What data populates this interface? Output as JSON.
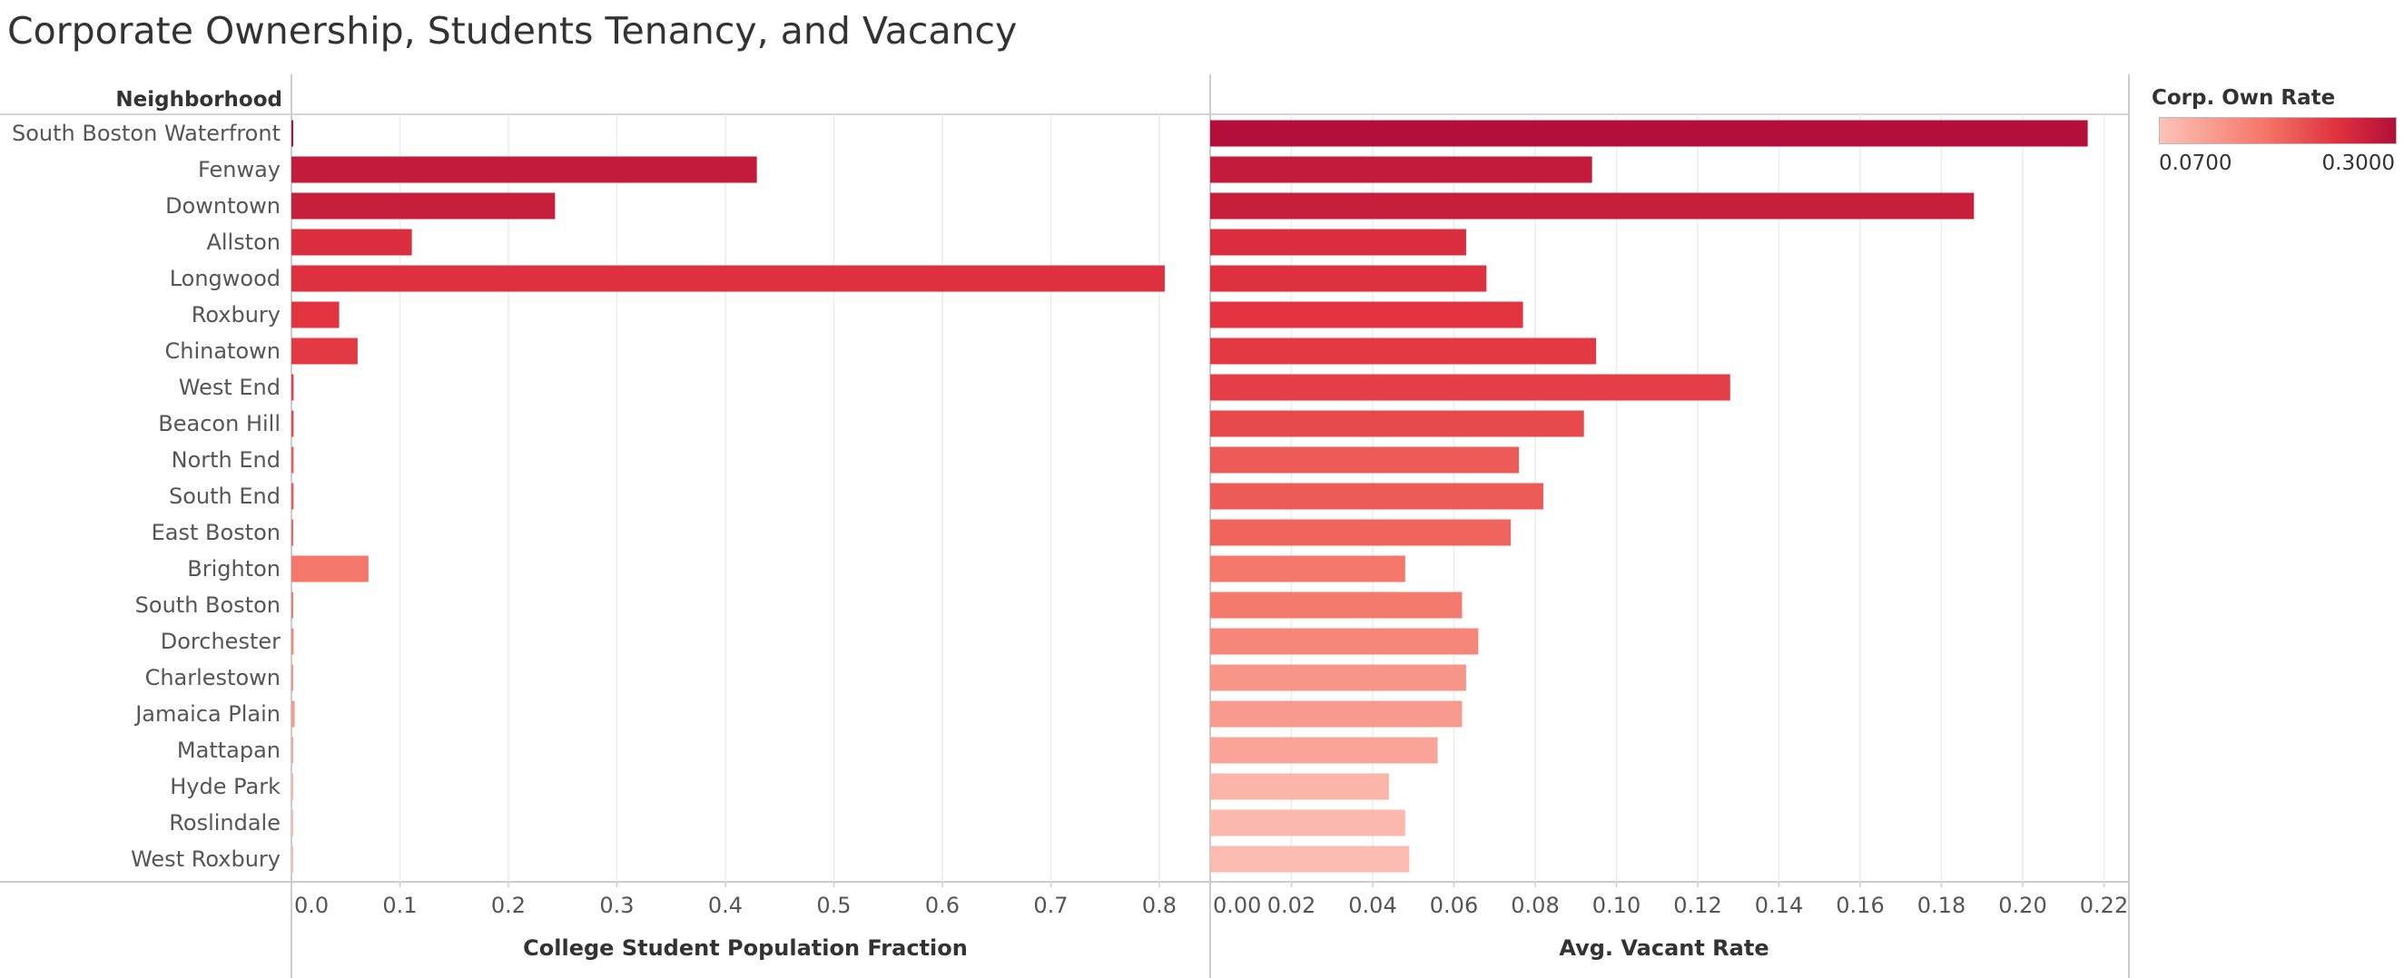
{
  "title": "Corporate Ownership, Students Tenancy, and Vacancy",
  "legend": {
    "title": "Corp. Own Rate",
    "min_label": "0.0700",
    "max_label": "0.3000",
    "min_color": "#fdc3b8",
    "max_color": "#b30f3a"
  },
  "chart_data": {
    "type": "bar",
    "orientation": "horizontal",
    "row_header": "Neighborhood",
    "categories": [
      "South Boston Waterfront",
      "Fenway",
      "Downtown",
      "Allston",
      "Longwood",
      "Roxbury",
      "Chinatown",
      "West End",
      "Beacon Hill",
      "North End",
      "South End",
      "East Boston",
      "Brighton",
      "South Boston",
      "Dorchester",
      "Charlestown",
      "Jamaica Plain",
      "Mattapan",
      "Hyde Park",
      "Roslindale",
      "West Roxbury"
    ],
    "color_measure": "Corp. Own Rate",
    "color_values": [
      0.3,
      0.28,
      0.275,
      0.25,
      0.245,
      0.24,
      0.235,
      0.23,
      0.22,
      0.2,
      0.2,
      0.19,
      0.17,
      0.165,
      0.15,
      0.13,
      0.125,
      0.11,
      0.09,
      0.085,
      0.08
    ],
    "panels": [
      {
        "xlabel": "College Student Population Fraction",
        "xlim": [
          0,
          0.84
        ],
        "ticks": [
          "0.0",
          "0.1",
          "0.2",
          "0.3",
          "0.4",
          "0.5",
          "0.6",
          "0.7",
          "0.8"
        ],
        "values": [
          0.0005,
          0.429,
          0.243,
          0.111,
          0.805,
          0.044,
          0.061,
          0.002,
          0.002,
          0.002,
          0.002,
          0.001,
          0.071,
          0.001,
          0.002,
          0.001,
          0.003,
          0.001,
          0.001,
          0.001,
          0.001
        ]
      },
      {
        "xlabel": "Avg. Vacant Rate",
        "xlim": [
          0,
          0.227
        ],
        "ticks": [
          "0.00",
          "0.02",
          "0.04",
          "0.06",
          "0.08",
          "0.10",
          "0.12",
          "0.14",
          "0.16",
          "0.18",
          "0.20",
          "0.22"
        ],
        "values": [
          0.216,
          0.094,
          0.188,
          0.063,
          0.068,
          0.077,
          0.095,
          0.128,
          0.092,
          0.076,
          0.082,
          0.074,
          0.048,
          0.062,
          0.066,
          0.063,
          0.062,
          0.056,
          0.044,
          0.048,
          0.049
        ]
      }
    ],
    "grid": true
  }
}
